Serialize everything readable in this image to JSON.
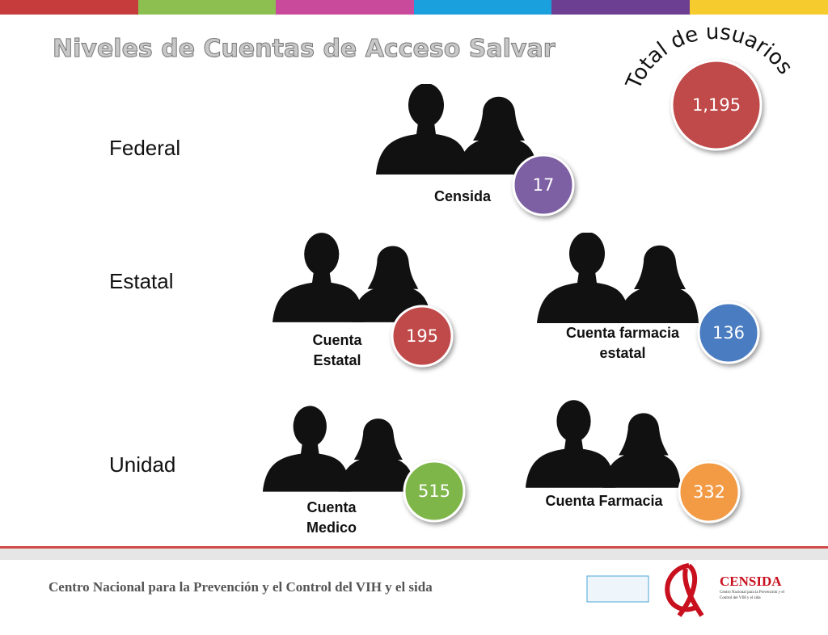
{
  "header": {
    "title": "Niveles de Cuentas de Acceso Salvar"
  },
  "total": {
    "label": "Total de usuarios",
    "value": "1,195"
  },
  "levels": [
    "Federal",
    "Estatal",
    "Unidad"
  ],
  "accounts": [
    {
      "name": "Censida",
      "value": 17
    },
    {
      "name": "Cuenta Estatal",
      "value": 195
    },
    {
      "name": "Cuenta farmacia estatal",
      "value": 136
    },
    {
      "name": "Cuenta Medico",
      "value": 515
    },
    {
      "name": "Cuenta Farmacia",
      "value": 332
    }
  ],
  "footer": {
    "text": "Centro Nacional para la Prevención y el Control del VIH y el sida",
    "logo": "CENSIDA",
    "logo_subtitle": "Centro Nacional para la Prevención y el Control del VIH y el sida"
  }
}
